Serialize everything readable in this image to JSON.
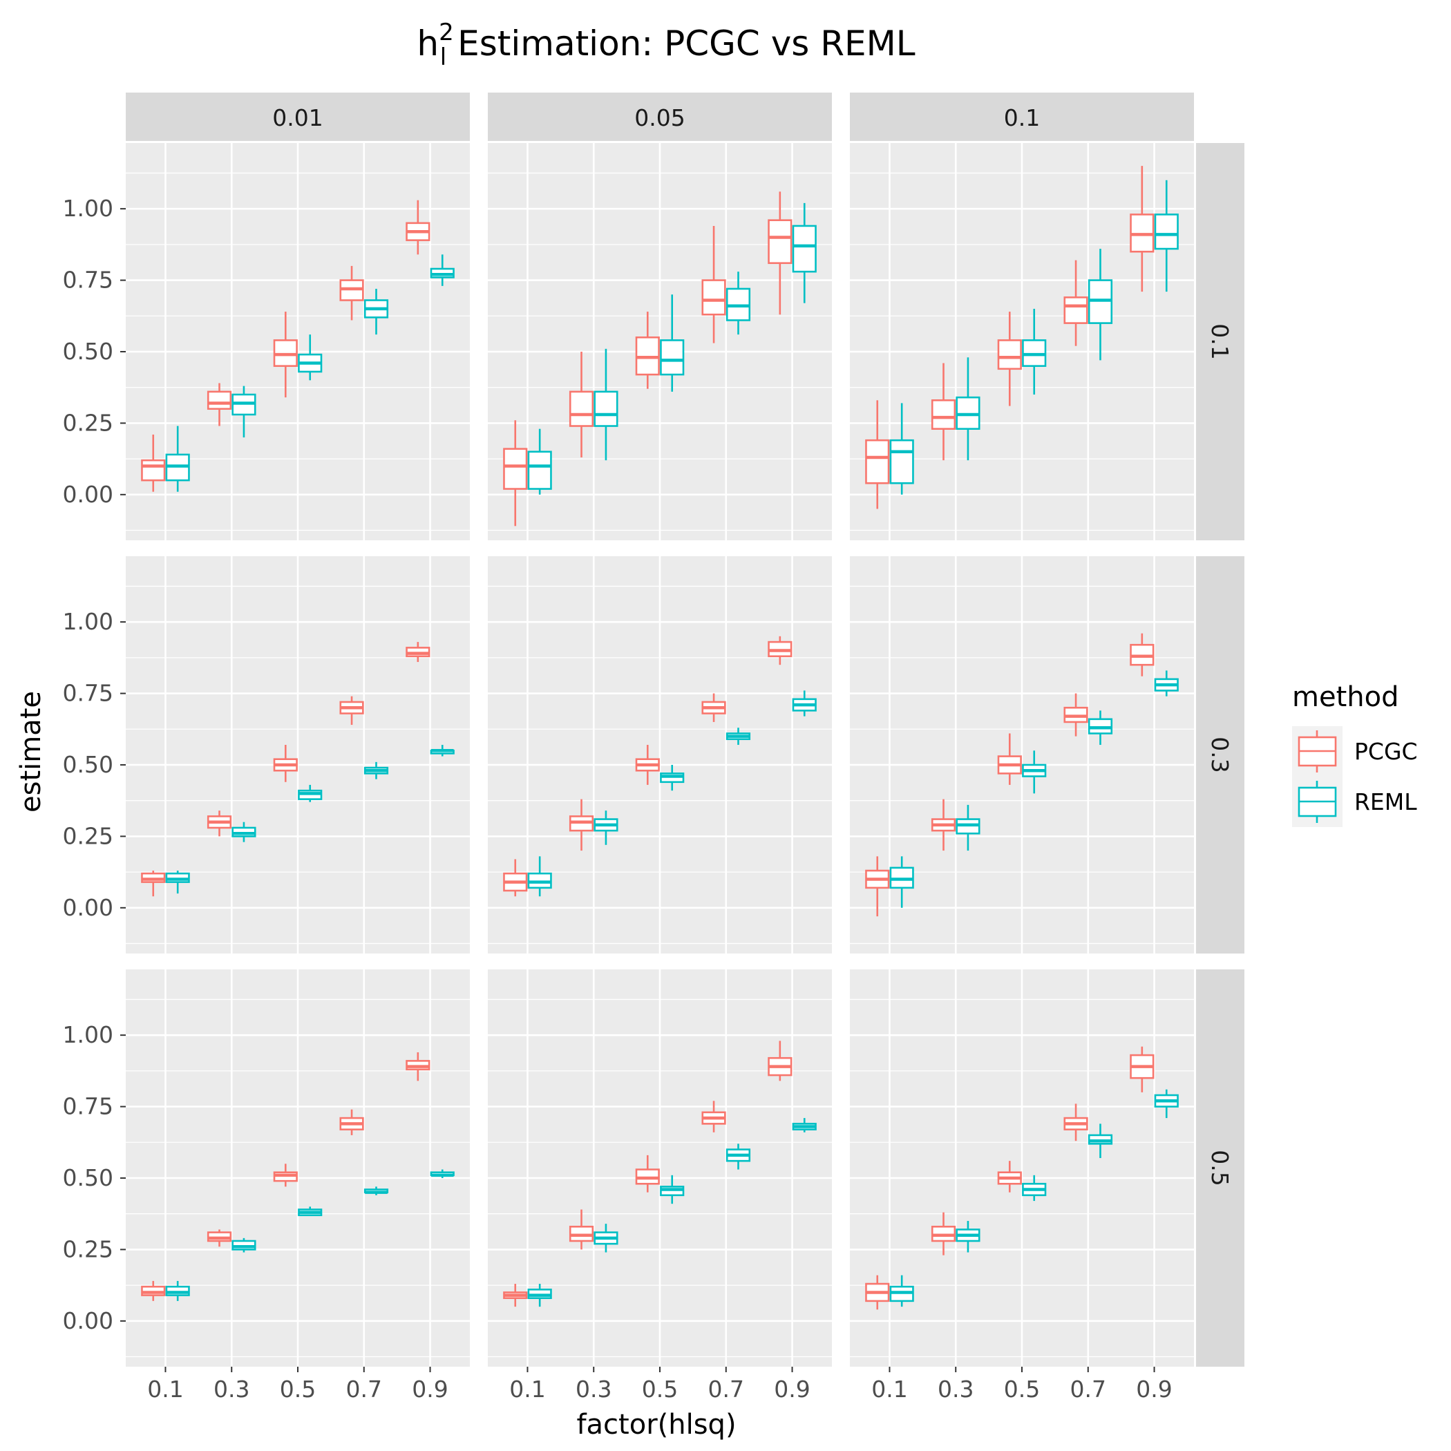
{
  "title": {
    "h": "h",
    "sup": "2",
    "sub": "l",
    "rest": " Estimation: PCGC vs REML"
  },
  "xlabel": "factor(hlsq)",
  "ylabel": "estimate",
  "legend": {
    "title": "method"
  },
  "colors": {
    "PCGC": "#F8766D",
    "REML": "#00BFC4",
    "panel_bg": "#EBEBEB",
    "strip_bg": "#D9D9D9",
    "grid": "#FFFFFF"
  },
  "chart_data": {
    "type": "boxplot",
    "title": "h_l^2 Estimation: PCGC vs REML",
    "xlabel": "factor(hlsq)",
    "ylabel": "estimate",
    "ylim": [
      -0.16,
      1.23
    ],
    "y_ticks": [
      "0.00",
      "0.25",
      "0.50",
      "0.75",
      "1.00"
    ],
    "categories": [
      "0.1",
      "0.3",
      "0.5",
      "0.7",
      "0.9"
    ],
    "facet_cols": [
      "0.01",
      "0.05",
      "0.1"
    ],
    "facet_rows": [
      "0.1",
      "0.3",
      "0.5"
    ],
    "grid": true,
    "legend_position": "right",
    "series_names": [
      "PCGC",
      "REML"
    ],
    "panels": [
      {
        "col": "0.01",
        "row": "0.1",
        "series": [
          {
            "name": "PCGC",
            "boxes": [
              [
                0.01,
                0.05,
                0.1,
                0.12,
                0.21
              ],
              [
                0.24,
                0.3,
                0.32,
                0.36,
                0.39
              ],
              [
                0.34,
                0.45,
                0.49,
                0.54,
                0.64
              ],
              [
                0.61,
                0.68,
                0.72,
                0.75,
                0.8
              ],
              [
                0.84,
                0.89,
                0.92,
                0.95,
                1.03
              ]
            ]
          },
          {
            "name": "REML",
            "boxes": [
              [
                0.01,
                0.05,
                0.1,
                0.14,
                0.24
              ],
              [
                0.2,
                0.28,
                0.32,
                0.35,
                0.38
              ],
              [
                0.4,
                0.43,
                0.46,
                0.49,
                0.56
              ],
              [
                0.56,
                0.62,
                0.65,
                0.68,
                0.72
              ],
              [
                0.73,
                0.76,
                0.77,
                0.79,
                0.84
              ]
            ]
          }
        ]
      },
      {
        "col": "0.05",
        "row": "0.1",
        "series": [
          {
            "name": "PCGC",
            "boxes": [
              [
                -0.11,
                0.02,
                0.1,
                0.16,
                0.26
              ],
              [
                0.13,
                0.24,
                0.28,
                0.36,
                0.5
              ],
              [
                0.37,
                0.42,
                0.48,
                0.55,
                0.64
              ],
              [
                0.53,
                0.63,
                0.68,
                0.75,
                0.94
              ],
              [
                0.63,
                0.81,
                0.9,
                0.96,
                1.06
              ]
            ]
          },
          {
            "name": "REML",
            "boxes": [
              [
                0.0,
                0.02,
                0.1,
                0.15,
                0.23
              ],
              [
                0.12,
                0.24,
                0.28,
                0.36,
                0.51
              ],
              [
                0.36,
                0.42,
                0.47,
                0.54,
                0.7
              ],
              [
                0.56,
                0.61,
                0.66,
                0.72,
                0.78
              ],
              [
                0.67,
                0.78,
                0.87,
                0.94,
                1.02
              ]
            ]
          }
        ]
      },
      {
        "col": "0.1",
        "row": "0.1",
        "series": [
          {
            "name": "PCGC",
            "boxes": [
              [
                -0.05,
                0.04,
                0.13,
                0.19,
                0.33
              ],
              [
                0.12,
                0.23,
                0.27,
                0.33,
                0.46
              ],
              [
                0.31,
                0.44,
                0.48,
                0.54,
                0.64
              ],
              [
                0.52,
                0.6,
                0.66,
                0.69,
                0.82
              ],
              [
                0.71,
                0.85,
                0.91,
                0.98,
                1.15
              ]
            ]
          },
          {
            "name": "REML",
            "boxes": [
              [
                0.0,
                0.04,
                0.15,
                0.19,
                0.32
              ],
              [
                0.12,
                0.23,
                0.28,
                0.34,
                0.48
              ],
              [
                0.35,
                0.45,
                0.49,
                0.54,
                0.65
              ],
              [
                0.47,
                0.6,
                0.68,
                0.75,
                0.86
              ],
              [
                0.71,
                0.86,
                0.91,
                0.98,
                1.1
              ]
            ]
          }
        ]
      },
      {
        "col": "0.01",
        "row": "0.3",
        "series": [
          {
            "name": "PCGC",
            "boxes": [
              [
                0.04,
                0.09,
                0.1,
                0.12,
                0.13
              ],
              [
                0.25,
                0.28,
                0.3,
                0.32,
                0.34
              ],
              [
                0.44,
                0.48,
                0.5,
                0.52,
                0.57
              ],
              [
                0.64,
                0.68,
                0.7,
                0.72,
                0.74
              ],
              [
                0.86,
                0.88,
                0.89,
                0.91,
                0.93
              ]
            ]
          },
          {
            "name": "REML",
            "boxes": [
              [
                0.05,
                0.09,
                0.1,
                0.12,
                0.13
              ],
              [
                0.23,
                0.25,
                0.26,
                0.28,
                0.3
              ],
              [
                0.37,
                0.38,
                0.4,
                0.41,
                0.43
              ],
              [
                0.45,
                0.47,
                0.48,
                0.49,
                0.51
              ],
              [
                0.53,
                0.54,
                0.55,
                0.55,
                0.57
              ]
            ]
          }
        ]
      },
      {
        "col": "0.05",
        "row": "0.3",
        "series": [
          {
            "name": "PCGC",
            "boxes": [
              [
                0.04,
                0.06,
                0.09,
                0.12,
                0.17
              ],
              [
                0.2,
                0.27,
                0.3,
                0.32,
                0.38
              ],
              [
                0.43,
                0.48,
                0.5,
                0.52,
                0.57
              ],
              [
                0.65,
                0.68,
                0.7,
                0.72,
                0.75
              ],
              [
                0.85,
                0.88,
                0.9,
                0.93,
                0.95
              ]
            ]
          },
          {
            "name": "REML",
            "boxes": [
              [
                0.04,
                0.07,
                0.09,
                0.12,
                0.18
              ],
              [
                0.22,
                0.27,
                0.29,
                0.31,
                0.34
              ],
              [
                0.41,
                0.44,
                0.46,
                0.47,
                0.5
              ],
              [
                0.57,
                0.59,
                0.6,
                0.61,
                0.63
              ],
              [
                0.67,
                0.69,
                0.71,
                0.73,
                0.76
              ]
            ]
          }
        ]
      },
      {
        "col": "0.1",
        "row": "0.3",
        "series": [
          {
            "name": "PCGC",
            "boxes": [
              [
                -0.03,
                0.07,
                0.1,
                0.13,
                0.18
              ],
              [
                0.2,
                0.27,
                0.29,
                0.31,
                0.38
              ],
              [
                0.43,
                0.47,
                0.5,
                0.53,
                0.61
              ],
              [
                0.6,
                0.65,
                0.67,
                0.7,
                0.75
              ],
              [
                0.81,
                0.85,
                0.88,
                0.92,
                0.96
              ]
            ]
          },
          {
            "name": "REML",
            "boxes": [
              [
                0.0,
                0.07,
                0.1,
                0.14,
                0.18
              ],
              [
                0.2,
                0.26,
                0.29,
                0.31,
                0.36
              ],
              [
                0.4,
                0.46,
                0.48,
                0.5,
                0.55
              ],
              [
                0.57,
                0.61,
                0.63,
                0.66,
                0.69
              ],
              [
                0.74,
                0.76,
                0.78,
                0.8,
                0.83
              ]
            ]
          }
        ]
      },
      {
        "col": "0.01",
        "row": "0.5",
        "series": [
          {
            "name": "PCGC",
            "boxes": [
              [
                0.07,
                0.09,
                0.1,
                0.12,
                0.14
              ],
              [
                0.26,
                0.28,
                0.29,
                0.31,
                0.32
              ],
              [
                0.47,
                0.49,
                0.51,
                0.52,
                0.55
              ],
              [
                0.65,
                0.67,
                0.69,
                0.71,
                0.74
              ],
              [
                0.84,
                0.88,
                0.89,
                0.91,
                0.94
              ]
            ]
          },
          {
            "name": "REML",
            "boxes": [
              [
                0.07,
                0.09,
                0.1,
                0.12,
                0.14
              ],
              [
                0.24,
                0.25,
                0.26,
                0.28,
                0.29
              ],
              [
                0.37,
                0.37,
                0.38,
                0.39,
                0.4
              ],
              [
                0.44,
                0.45,
                0.45,
                0.46,
                0.47
              ],
              [
                0.5,
                0.51,
                0.51,
                0.52,
                0.53
              ]
            ]
          }
        ]
      },
      {
        "col": "0.05",
        "row": "0.5",
        "series": [
          {
            "name": "PCGC",
            "boxes": [
              [
                0.05,
                0.08,
                0.09,
                0.1,
                0.13
              ],
              [
                0.25,
                0.28,
                0.3,
                0.33,
                0.39
              ],
              [
                0.45,
                0.48,
                0.5,
                0.53,
                0.58
              ],
              [
                0.66,
                0.69,
                0.71,
                0.73,
                0.77
              ],
              [
                0.84,
                0.86,
                0.89,
                0.92,
                0.98
              ]
            ]
          },
          {
            "name": "REML",
            "boxes": [
              [
                0.05,
                0.08,
                0.09,
                0.11,
                0.13
              ],
              [
                0.24,
                0.27,
                0.29,
                0.31,
                0.34
              ],
              [
                0.41,
                0.44,
                0.46,
                0.47,
                0.51
              ],
              [
                0.53,
                0.56,
                0.58,
                0.6,
                0.62
              ],
              [
                0.66,
                0.67,
                0.68,
                0.69,
                0.71
              ]
            ]
          }
        ]
      },
      {
        "col": "0.1",
        "row": "0.5",
        "series": [
          {
            "name": "PCGC",
            "boxes": [
              [
                0.04,
                0.07,
                0.1,
                0.13,
                0.16
              ],
              [
                0.23,
                0.28,
                0.3,
                0.33,
                0.38
              ],
              [
                0.45,
                0.48,
                0.5,
                0.52,
                0.56
              ],
              [
                0.63,
                0.67,
                0.69,
                0.71,
                0.76
              ],
              [
                0.8,
                0.85,
                0.89,
                0.93,
                0.96
              ]
            ]
          },
          {
            "name": "REML",
            "boxes": [
              [
                0.05,
                0.07,
                0.1,
                0.12,
                0.16
              ],
              [
                0.24,
                0.28,
                0.3,
                0.32,
                0.35
              ],
              [
                0.42,
                0.44,
                0.46,
                0.48,
                0.51
              ],
              [
                0.57,
                0.62,
                0.63,
                0.65,
                0.69
              ],
              [
                0.71,
                0.75,
                0.77,
                0.79,
                0.81
              ]
            ]
          }
        ]
      }
    ]
  }
}
